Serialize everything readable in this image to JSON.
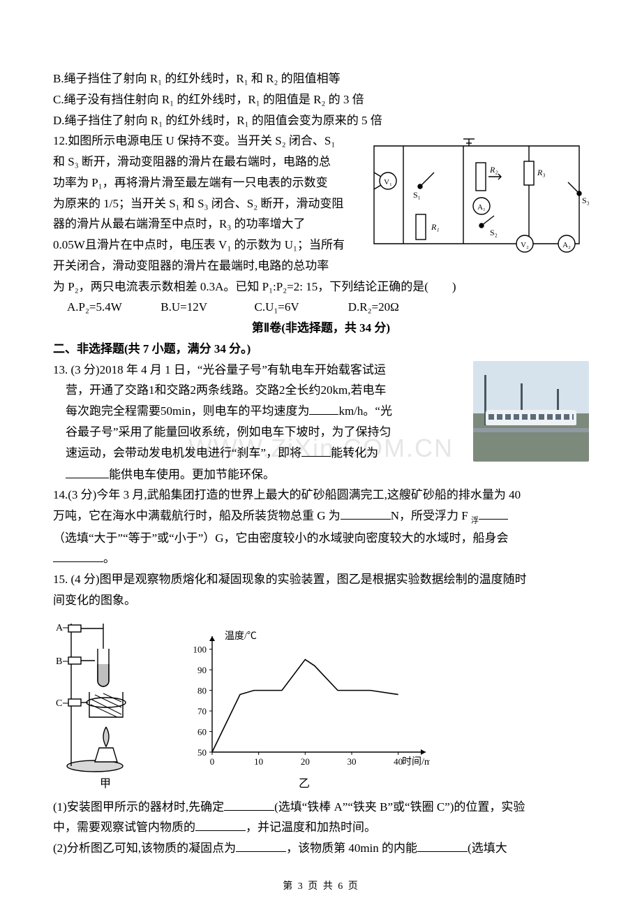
{
  "options_11": {
    "B": "绳子挡住了射向 R₁ 的红外线时，R₁ 和 R₂ 的阻值相等",
    "C": "绳子没有挡住射向 R₁ 的红外线时，R₁ 的阻值是 R₂ 的 3 倍",
    "D": "绳子挡住了射向 R₁ 的红外线时，R₁ 的阻值会变为原来的 5 倍"
  },
  "q12": {
    "stem1": "12.如图所示电源电压 U 保持不变。当开关 S₂ 闭合、S₁",
    "stem2": "和 S₃ 断开，滑动变阻器的滑片在最右端时，电路的总",
    "stem3": "功率为 P₁，再将滑片滑至最左端有一只电表的示数变",
    "stem4": "为原来的 1/5；当开关 S₁ 和 S₃ 闭合、S₂ 断开，滑动变阻",
    "stem5": "器的滑片从最右端滑至中点时，R₃ 的功率增大了",
    "stem6": "0.05W且滑片在中点时，电压表 V₁ 的示数为 U₁；当所有",
    "stem7": "开关闭合，滑动变阻器的滑片在最端时,电路的总功率",
    "stem8": "为 P₂，两只电流表示数相差 0.3A。已知 P₁:P₂=2: 15，下列结论正确的是(　　)",
    "A": "A.P₂=5.4W",
    "B": "B.U=12V",
    "C": "C.U₁=6V",
    "D": "D.R₂=20Ω",
    "circuit": {
      "labels": [
        "V₁",
        "V₂",
        "A₁",
        "A₂",
        "S₁",
        "S₂",
        "S₃",
        "R₁",
        "R₂",
        "R₃"
      ],
      "stroke": "#000000",
      "bg": "#ffffff"
    }
  },
  "section2": {
    "title": "第Ⅱ卷(非选择题，共 34 分)",
    "sub": "二、非选择题(共 7 小题，满分 34 分。)"
  },
  "q13": {
    "l1": "13. (3 分)2018 年 4 月 1 日，“光谷量子号”有轨电车开始载客试运",
    "l2": "营，开通了交路1和交路2两条线路。交路2全长约20km,若电车",
    "l3a": "每次跑完全程需要50min，则电车的平均速度为",
    "l3b": "km/h。“光",
    "l4": "谷最子号”采用了能量回收系统，例如电车下坡时，为了保持匀",
    "l5a": "速运动，会带动发电机发电进行“刹车”，即将",
    "l5b_suffix": "能转化为",
    "l6_suffix": "能供电车使用。更加节能环保。"
  },
  "q14": {
    "l1": "14.(3 分)今年 3 月,武船集团打造的世界上最大的矿砂船圆满完工,这艘矿砂船的排水量为 40",
    "l2a": "万吨，它在海水中满载航行时，船及所装货物总重 G 为",
    "l2b": "N，所受浮力 F ",
    "fu": "浮",
    "l3": "（选填“大于”“等于”或“小于”）G，它由密度较小的水域驶向密度较大的水域时，船身会",
    "l4_suffix": "。"
  },
  "q15": {
    "l1": "15. (4 分)图甲是观察物质熔化和凝固现象的实验装置，图乙是根据实验数据绘制的温度随时",
    "l2": "间变化的图象。",
    "p1a": "(1)安装图甲所示的器材时,先确定",
    "p1b": "(选填“铁棒 A”“铁夹 B”或“铁圈 C”)的位置，实验",
    "p1c": "中，需要观察试管内物质的",
    "p1d": "，并记温度和加热时间。",
    "p2a": "(2)分析图乙可知,该物质的凝固点为",
    "p2b": "，该物质第 40min 的内能",
    "p2c": "(选填大"
  },
  "graph": {
    "title_y": "温度/℃",
    "title_x": "时间/min",
    "x_ticks": [
      0,
      10,
      20,
      30,
      40
    ],
    "y_ticks": [
      50,
      60,
      70,
      80,
      90,
      100
    ],
    "x_range": [
      0,
      45
    ],
    "y_range": [
      50,
      105
    ],
    "axis_color": "#000000",
    "grid": false,
    "line_color": "#000000",
    "line_width": 1.6,
    "points": [
      [
        0,
        50
      ],
      [
        6,
        78
      ],
      [
        9,
        80
      ],
      [
        15,
        80
      ],
      [
        20,
        95
      ],
      [
        22,
        92
      ],
      [
        27,
        80
      ],
      [
        34,
        80
      ],
      [
        40,
        78
      ]
    ]
  },
  "apparatus_labels": {
    "A": "A",
    "B": "B",
    "C": "C",
    "cap": "甲",
    "cap2": "乙"
  },
  "watermark": "WWW.ZiXin.COM.CN",
  "footer": "第 3 页 共 6 页"
}
